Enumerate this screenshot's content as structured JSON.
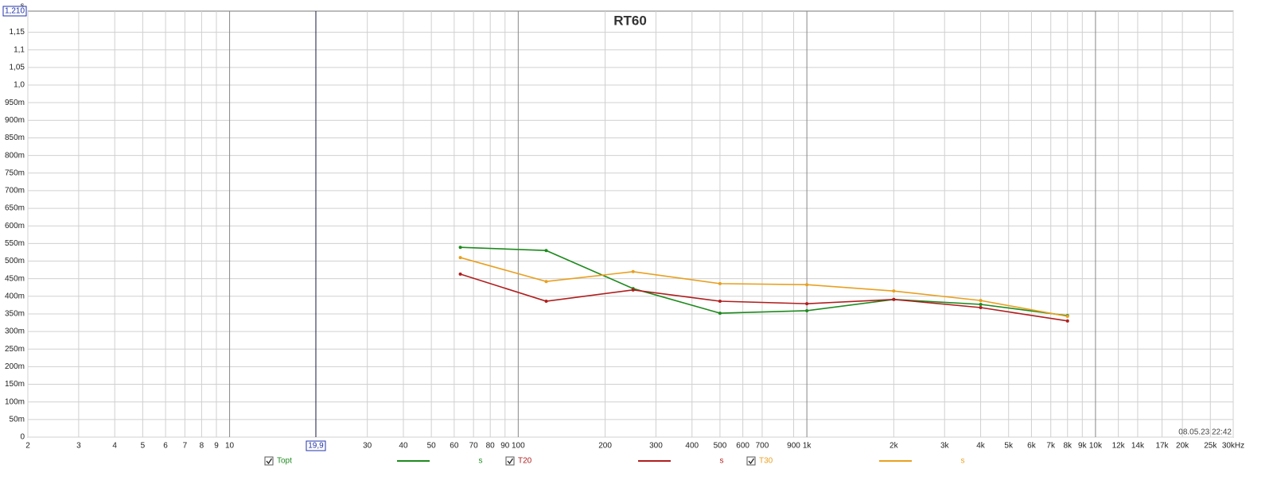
{
  "chart_data": {
    "type": "line",
    "title": "RT60",
    "y_unit": "s",
    "log_x": true,
    "grid": true,
    "x": [
      63,
      125,
      250,
      500,
      1000,
      2000,
      4000,
      8000
    ],
    "series": [
      {
        "name": "Topt",
        "color": "#1e8a1e",
        "unit": "s",
        "values": [
          0.539,
          0.53,
          0.422,
          0.352,
          0.359,
          0.391,
          0.377,
          0.345
        ]
      },
      {
        "name": "T20",
        "color": "#b01e1e",
        "unit": "s",
        "values": [
          0.463,
          0.386,
          0.418,
          0.386,
          0.379,
          0.391,
          0.368,
          0.33
        ]
      },
      {
        "name": "T30",
        "color": "#e8a020",
        "unit": "s",
        "values": [
          0.51,
          0.442,
          0.47,
          0.436,
          0.433,
          0.415,
          0.388,
          0.343
        ]
      }
    ],
    "xlim": [
      2,
      30000
    ],
    "ylim": [
      0,
      1.21
    ],
    "xticks": [
      2,
      3,
      4,
      5,
      6,
      7,
      8,
      9,
      10,
      30,
      40,
      50,
      60,
      70,
      80,
      90,
      100,
      200,
      300,
      400,
      500,
      600,
      700,
      900,
      {
        "value": 1000,
        "label": "1k"
      },
      {
        "value": 2000,
        "label": "2k"
      },
      {
        "value": 3000,
        "label": "3k"
      },
      {
        "value": 4000,
        "label": "4k"
      },
      {
        "value": 5000,
        "label": "5k"
      },
      {
        "value": 6000,
        "label": "6k"
      },
      {
        "value": 7000,
        "label": "7k"
      },
      {
        "value": 8000,
        "label": "8k"
      },
      {
        "value": 9000,
        "label": "9k"
      },
      {
        "value": 10000,
        "label": "10k"
      },
      {
        "value": 12000,
        "label": "12k"
      },
      {
        "value": 14000,
        "label": "14k"
      },
      {
        "value": 17000,
        "label": "17k"
      },
      {
        "value": 20000,
        "label": "20k"
      },
      {
        "value": 25000,
        "label": "25k"
      },
      {
        "value": 30000,
        "label": "30kHz"
      }
    ],
    "yticks": [
      0,
      {
        "value": 0.05,
        "label": "50m"
      },
      {
        "value": 0.1,
        "label": "100m"
      },
      {
        "value": 0.15,
        "label": "150m"
      },
      {
        "value": 0.2,
        "label": "200m"
      },
      {
        "value": 0.25,
        "label": "250m"
      },
      {
        "value": 0.3,
        "label": "300m"
      },
      {
        "value": 0.35,
        "label": "350m"
      },
      {
        "value": 0.4,
        "label": "400m"
      },
      {
        "value": 0.45,
        "label": "450m"
      },
      {
        "value": 0.5,
        "label": "500m"
      },
      {
        "value": 0.55,
        "label": "550m"
      },
      {
        "value": 0.6,
        "label": "600m"
      },
      {
        "value": 0.65,
        "label": "650m"
      },
      {
        "value": 0.7,
        "label": "700m"
      },
      {
        "value": 0.75,
        "label": "750m"
      },
      {
        "value": 0.8,
        "label": "800m"
      },
      {
        "value": 0.85,
        "label": "850m"
      },
      {
        "value": 0.9,
        "label": "900m"
      },
      {
        "value": 0.95,
        "label": "950m"
      },
      {
        "value": 1.0,
        "label": "1,0"
      },
      {
        "value": 1.05,
        "label": "1,05"
      },
      {
        "value": 1.1,
        "label": "1,1"
      },
      {
        "value": 1.15,
        "label": "1,15"
      }
    ],
    "cursor": {
      "x": 19.9,
      "x_label": "19,9",
      "y": 1.21,
      "y_label": "1,210"
    },
    "timestamp": "08.05.23 22:42"
  }
}
